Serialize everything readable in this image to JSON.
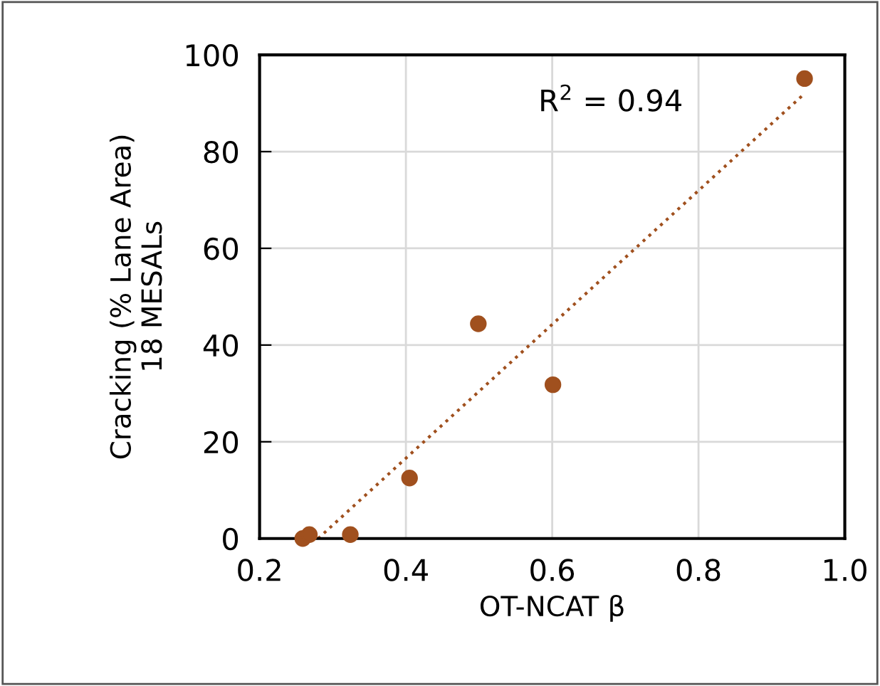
{
  "chart_data": {
    "type": "scatter",
    "xlabel": "OT-NCAT β",
    "ylabel": "Cracking (% Lane Area)\n18 MESALs",
    "annotations": [
      "R$^{2}$ = 0.94"
    ],
    "series": [
      {
        "color": "#a0501e",
        "marker": "circle",
        "x": [
          0.259,
          0.268,
          0.324,
          0.405,
          0.499,
          0.601,
          0.945
        ],
        "values": [
          0,
          0.8,
          0.8,
          12.5,
          44.4,
          31.8,
          95.1
        ]
      },
      {
        "type": "line",
        "color": "#a0501e",
        "line_style": "dotted",
        "marker": "none",
        "x": [
          0.28,
          0.945
        ],
        "values": [
          0,
          92
        ]
      }
    ],
    "xlim": [
      0.2,
      1.0
    ],
    "xticks": [
      0.2,
      0.4,
      0.6,
      0.8,
      {
        "value": 1.0,
        "label": "1.0"
      }
    ],
    "ylim": [
      0,
      100
    ],
    "yticks": [
      0,
      20,
      40,
      60,
      80,
      100
    ],
    "grid": true,
    "legend": false
  }
}
